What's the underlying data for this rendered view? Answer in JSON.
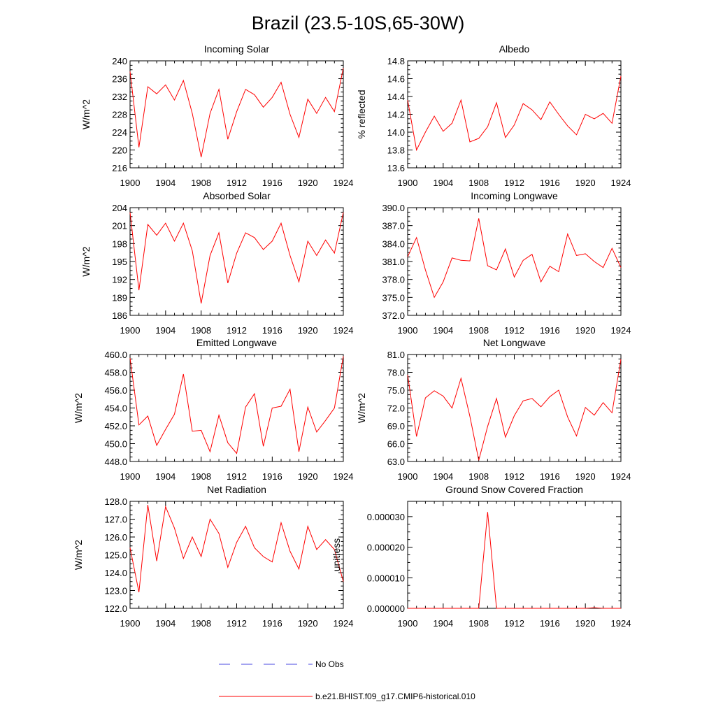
{
  "title": "Brazil (23.5-10S,65-30W)",
  "chart_data": [
    {
      "type": "line",
      "title": "Incoming Solar",
      "ylabel": "W/m^2",
      "ylim": [
        216,
        240
      ],
      "yticks": [
        "216",
        "220",
        "224",
        "228",
        "232",
        "236",
        "240"
      ],
      "x": [
        1900,
        1901,
        1902,
        1903,
        1904,
        1905,
        1906,
        1907,
        1908,
        1909,
        1910,
        1911,
        1912,
        1913,
        1914,
        1915,
        1916,
        1917,
        1918,
        1919,
        1920,
        1921,
        1922,
        1923,
        1924
      ],
      "series": [
        {
          "name": "b.e21.BHIST.f09_g17.CMIP6-historical.010",
          "values": [
            237.6,
            220.6,
            234.2,
            232.6,
            234.6,
            231.2,
            235.6,
            228.2,
            218.4,
            228.2,
            233.6,
            222.4,
            228.6,
            233.6,
            232.4,
            229.6,
            231.8,
            235.2,
            228.0,
            222.8,
            231.4,
            228.2,
            231.8,
            228.6,
            238.4
          ]
        }
      ]
    },
    {
      "type": "line",
      "title": "Albedo",
      "ylabel": "% reflected",
      "ylim": [
        13.6,
        14.8
      ],
      "yticks": [
        "13.6",
        "13.8",
        "14.0",
        "14.2",
        "14.4",
        "14.6",
        "14.8"
      ],
      "x": [
        1900,
        1901,
        1902,
        1903,
        1904,
        1905,
        1906,
        1907,
        1908,
        1909,
        1910,
        1911,
        1912,
        1913,
        1914,
        1915,
        1916,
        1917,
        1918,
        1919,
        1920,
        1921,
        1922,
        1923,
        1924
      ],
      "series": [
        {
          "name": "b.e21.BHIST.f09_g17.CMIP6-historical.010",
          "values": [
            14.36,
            13.8,
            14.0,
            14.18,
            14.01,
            14.1,
            14.36,
            13.89,
            13.93,
            14.06,
            14.33,
            13.94,
            14.08,
            14.32,
            14.25,
            14.14,
            14.34,
            14.2,
            14.07,
            13.97,
            14.2,
            14.15,
            14.21,
            14.1,
            14.63
          ]
        }
      ]
    },
    {
      "type": "line",
      "title": "Absorbed Solar",
      "ylabel": "W/m^2",
      "ylim": [
        186,
        204
      ],
      "yticks": [
        "186",
        "189",
        "192",
        "195",
        "198",
        "201",
        "204"
      ],
      "x": [
        1900,
        1901,
        1902,
        1903,
        1904,
        1905,
        1906,
        1907,
        1908,
        1909,
        1910,
        1911,
        1912,
        1913,
        1914,
        1915,
        1916,
        1917,
        1918,
        1919,
        1920,
        1921,
        1922,
        1923,
        1924
      ],
      "series": [
        {
          "name": "b.e21.BHIST.f09_g17.CMIP6-historical.010",
          "values": [
            203.2,
            190.2,
            201.2,
            199.4,
            201.4,
            198.4,
            201.4,
            196.8,
            188.0,
            196.0,
            199.8,
            191.4,
            196.4,
            199.8,
            199.0,
            197.0,
            198.4,
            201.4,
            196.0,
            191.6,
            198.4,
            196.0,
            198.6,
            196.4,
            203.2
          ]
        }
      ]
    },
    {
      "type": "line",
      "title": "Incoming Longwave",
      "ylabel": "",
      "ylim": [
        372,
        390
      ],
      "yticks": [
        "372.0",
        "375.0",
        "378.0",
        "381.0",
        "384.0",
        "387.0",
        "390.0"
      ],
      "x": [
        1900,
        1901,
        1902,
        1903,
        1904,
        1905,
        1906,
        1907,
        1908,
        1909,
        1910,
        1911,
        1912,
        1913,
        1914,
        1915,
        1916,
        1917,
        1918,
        1919,
        1920,
        1921,
        1922,
        1923,
        1924
      ],
      "series": [
        {
          "name": "b.e21.BHIST.f09_g17.CMIP6-historical.010",
          "values": [
            381.8,
            385.0,
            379.6,
            375.0,
            377.6,
            381.6,
            381.2,
            381.1,
            388.2,
            380.3,
            379.6,
            383.1,
            378.4,
            381.2,
            382.2,
            377.6,
            380.2,
            379.3,
            385.6,
            382.0,
            382.3,
            381.0,
            380.0,
            383.2,
            380.0
          ]
        }
      ]
    },
    {
      "type": "line",
      "title": "Emitted Longwave",
      "ylabel": "W/m^2",
      "ylim": [
        448,
        460
      ],
      "yticks": [
        "448.0",
        "450.0",
        "452.0",
        "454.0",
        "456.0",
        "458.0",
        "460.0"
      ],
      "x": [
        1900,
        1901,
        1902,
        1903,
        1904,
        1905,
        1906,
        1907,
        1908,
        1909,
        1910,
        1911,
        1912,
        1913,
        1914,
        1915,
        1916,
        1917,
        1918,
        1919,
        1920,
        1921,
        1922,
        1923,
        1924
      ],
      "series": [
        {
          "name": "b.e21.BHIST.f09_g17.CMIP6-historical.010",
          "values": [
            459.6,
            452.1,
            453.1,
            449.8,
            451.6,
            453.3,
            457.8,
            451.4,
            451.5,
            449.1,
            453.2,
            450.1,
            448.9,
            454.1,
            455.6,
            449.7,
            454.0,
            454.2,
            456.1,
            449.1,
            454.1,
            451.3,
            452.6,
            454.0,
            459.8
          ]
        }
      ]
    },
    {
      "type": "line",
      "title": "Net Longwave",
      "ylabel": "W/m^2",
      "ylim": [
        63,
        81
      ],
      "yticks": [
        "63.0",
        "66.0",
        "69.0",
        "72.0",
        "75.0",
        "78.0",
        "81.0"
      ],
      "x": [
        1900,
        1901,
        1902,
        1903,
        1904,
        1905,
        1906,
        1907,
        1908,
        1909,
        1910,
        1911,
        1912,
        1913,
        1914,
        1915,
        1916,
        1917,
        1918,
        1919,
        1920,
        1921,
        1922,
        1923,
        1924
      ],
      "series": [
        {
          "name": "b.e21.BHIST.f09_g17.CMIP6-historical.010",
          "values": [
            77.6,
            67.2,
            73.7,
            74.9,
            74.0,
            72.0,
            77.0,
            70.6,
            63.2,
            68.9,
            73.6,
            67.1,
            70.7,
            73.2,
            73.6,
            72.2,
            73.9,
            75.0,
            70.5,
            67.3,
            72.1,
            70.8,
            72.9,
            71.2,
            80.2
          ]
        }
      ]
    },
    {
      "type": "line",
      "title": "Net Radiation",
      "ylabel": "W/m^2",
      "ylim": [
        122,
        128
      ],
      "yticks": [
        "122.0",
        "123.0",
        "124.0",
        "125.0",
        "126.0",
        "127.0",
        "128.0"
      ],
      "x": [
        1900,
        1901,
        1902,
        1903,
        1904,
        1905,
        1906,
        1907,
        1908,
        1909,
        1910,
        1911,
        1912,
        1913,
        1914,
        1915,
        1916,
        1917,
        1918,
        1919,
        1920,
        1921,
        1922,
        1923,
        1924
      ],
      "series": [
        {
          "name": "b.e21.BHIST.f09_g17.CMIP6-historical.010",
          "values": [
            125.4,
            122.9,
            127.8,
            124.65,
            127.7,
            126.5,
            124.8,
            126.0,
            124.9,
            127.0,
            126.2,
            124.3,
            125.7,
            126.6,
            125.4,
            124.9,
            124.6,
            126.8,
            125.2,
            124.2,
            126.6,
            125.3,
            125.85,
            125.3,
            123.5
          ]
        }
      ]
    },
    {
      "type": "line",
      "title": "Ground Snow Covered Fraction",
      "ylabel": "unitless",
      "ylim": [
        0,
        3.5e-05
      ],
      "yticks": [
        "0.000000",
        "0.000010",
        "0.000020",
        "0.000030"
      ],
      "x": [
        1900,
        1901,
        1902,
        1903,
        1904,
        1905,
        1906,
        1907,
        1908,
        1909,
        1910,
        1911,
        1912,
        1913,
        1914,
        1915,
        1916,
        1917,
        1918,
        1919,
        1920,
        1921,
        1922,
        1923,
        1924
      ],
      "series": [
        {
          "name": "b.e21.BHIST.f09_g17.CMIP6-historical.010",
          "values": [
            0,
            0,
            0,
            0,
            0,
            0,
            0,
            0,
            0,
            3.15e-05,
            0,
            0,
            0,
            0,
            0,
            0,
            0,
            0,
            0,
            0,
            0,
            2e-07,
            0,
            0,
            0
          ]
        }
      ]
    }
  ],
  "xaxis": {
    "ticks": [
      "1900",
      "1904",
      "1908",
      "1912",
      "1916",
      "1920",
      "1924"
    ]
  },
  "legend": {
    "obs_label": "No Obs",
    "obs_color": "#4a4ae0",
    "model_label": "b.e21.BHIST.f09_g17.CMIP6-historical.010",
    "model_color": "#ff0000"
  }
}
